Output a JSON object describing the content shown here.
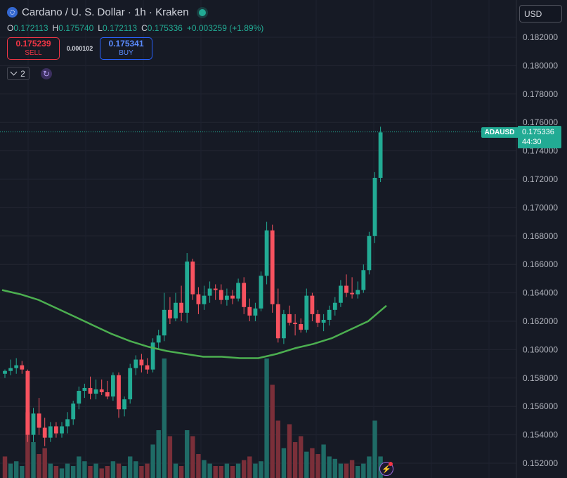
{
  "header": {
    "symbol_title": "Cardano / U. S. Dollar · 1h · Kraken",
    "icon": "cardano-coin-icon",
    "live_indicator": "live-dot-icon"
  },
  "ohlc": {
    "o_label": "O",
    "o_value": "0.172113",
    "h_label": "H",
    "h_value": "0.175740",
    "l_label": "L",
    "l_value": "0.172113",
    "c_label": "C",
    "c_value": "0.175336",
    "change": "+0.003259 (+1.89%)"
  },
  "trade": {
    "sell_price": "0.175239",
    "sell_label": "SELL",
    "spread": "0.000102",
    "buy_price": "0.175341",
    "buy_label": "BUY"
  },
  "indicators": {
    "collapsed_count": "2"
  },
  "currency_select": "USD",
  "price_tag": {
    "symbol": "ADAUSD",
    "price": "0.175336",
    "countdown": "44:30"
  },
  "colors": {
    "background": "#161a25",
    "up": "#22ab94",
    "down": "#f7525f",
    "vol_up": "#1f6b66",
    "vol_down": "#7a2f39",
    "ma": "#4caf50"
  },
  "chart_data": {
    "type": "candlestick",
    "interval": "1h",
    "y_ticks": [
      "0.182000",
      "0.180000",
      "0.178000",
      "0.176000",
      "0.174000",
      "0.172000",
      "0.170000",
      "0.168000",
      "0.166000",
      "0.164000",
      "0.162000",
      "0.160000",
      "0.158000",
      "0.156000",
      "0.154000",
      "0.152000"
    ],
    "ylim": [
      0.1512,
      0.1836
    ],
    "last_price": 0.175336,
    "candles": [
      [
        0.1583,
        0.1586,
        0.158,
        0.1585
      ],
      [
        0.1585,
        0.1593,
        0.1582,
        0.1587
      ],
      [
        0.1587,
        0.1594,
        0.1583,
        0.1589
      ],
      [
        0.1589,
        0.1592,
        0.1583,
        0.1586
      ],
      [
        0.1585,
        0.1586,
        0.1535,
        0.154
      ],
      [
        0.154,
        0.1559,
        0.1535,
        0.1555
      ],
      [
        0.1555,
        0.1566,
        0.154,
        0.1545
      ],
      [
        0.1545,
        0.1552,
        0.1532,
        0.1538
      ],
      [
        0.1538,
        0.1549,
        0.1535,
        0.1546
      ],
      [
        0.1546,
        0.1549,
        0.1538,
        0.1541
      ],
      [
        0.1541,
        0.1549,
        0.1538,
        0.1546
      ],
      [
        0.1546,
        0.1556,
        0.1541,
        0.1551
      ],
      [
        0.1551,
        0.1564,
        0.1547,
        0.1562
      ],
      [
        0.1562,
        0.1574,
        0.1558,
        0.1571
      ],
      [
        0.1571,
        0.1576,
        0.1566,
        0.1573
      ],
      [
        0.1573,
        0.1581,
        0.1565,
        0.1569
      ],
      [
        0.1569,
        0.1579,
        0.1565,
        0.1572
      ],
      [
        0.1572,
        0.1579,
        0.1568,
        0.157
      ],
      [
        0.157,
        0.1578,
        0.1565,
        0.1567
      ],
      [
        0.1567,
        0.1584,
        0.1564,
        0.1582
      ],
      [
        0.1582,
        0.1584,
        0.1552,
        0.1558
      ],
      [
        0.1558,
        0.1567,
        0.1553,
        0.1565
      ],
      [
        0.1565,
        0.159,
        0.1562,
        0.1587
      ],
      [
        0.1587,
        0.1596,
        0.1582,
        0.1593
      ],
      [
        0.1593,
        0.1597,
        0.1584,
        0.1589
      ],
      [
        0.1589,
        0.1594,
        0.1583,
        0.1586
      ],
      [
        0.1586,
        0.1608,
        0.1584,
        0.1605
      ],
      [
        0.1605,
        0.1614,
        0.16,
        0.161
      ],
      [
        0.161,
        0.164,
        0.1606,
        0.1628
      ],
      [
        0.1628,
        0.1637,
        0.1618,
        0.1622
      ],
      [
        0.1622,
        0.164,
        0.162,
        0.1633
      ],
      [
        0.1633,
        0.1645,
        0.162,
        0.1626
      ],
      [
        0.1626,
        0.1668,
        0.1619,
        0.1662
      ],
      [
        0.1662,
        0.1664,
        0.1635,
        0.1639
      ],
      [
        0.1639,
        0.1644,
        0.1625,
        0.1632
      ],
      [
        0.1632,
        0.1645,
        0.1628,
        0.1638
      ],
      [
        0.1638,
        0.1648,
        0.1633,
        0.1643
      ],
      [
        0.1643,
        0.1646,
        0.1635,
        0.1642
      ],
      [
        0.1642,
        0.1646,
        0.1632,
        0.1635
      ],
      [
        0.1635,
        0.1643,
        0.1631,
        0.1638
      ],
      [
        0.1638,
        0.1642,
        0.1632,
        0.1636
      ],
      [
        0.1636,
        0.165,
        0.1634,
        0.1647
      ],
      [
        0.1647,
        0.1651,
        0.1625,
        0.163
      ],
      [
        0.163,
        0.1636,
        0.162,
        0.1624
      ],
      [
        0.1624,
        0.1633,
        0.162,
        0.1629
      ],
      [
        0.1629,
        0.1655,
        0.1627,
        0.1652
      ],
      [
        0.1652,
        0.169,
        0.1646,
        0.1684
      ],
      [
        0.1684,
        0.1688,
        0.1626,
        0.1632
      ],
      [
        0.1632,
        0.1643,
        0.1605,
        0.1608
      ],
      [
        0.1608,
        0.1628,
        0.1604,
        0.1625
      ],
      [
        0.1625,
        0.1631,
        0.1617,
        0.1619
      ],
      [
        0.1619,
        0.1625,
        0.161,
        0.1618
      ],
      [
        0.1618,
        0.1622,
        0.1612,
        0.1614
      ],
      [
        0.1614,
        0.1643,
        0.1612,
        0.1638
      ],
      [
        0.1638,
        0.164,
        0.162,
        0.1625
      ],
      [
        0.1625,
        0.1628,
        0.1616,
        0.1619
      ],
      [
        0.1619,
        0.1625,
        0.1613,
        0.1621
      ],
      [
        0.1621,
        0.1631,
        0.1617,
        0.1628
      ],
      [
        0.1628,
        0.1637,
        0.1624,
        0.1633
      ],
      [
        0.1633,
        0.1649,
        0.163,
        0.1645
      ],
      [
        0.1645,
        0.1653,
        0.1637,
        0.164
      ],
      [
        0.164,
        0.1651,
        0.1636,
        0.1639
      ],
      [
        0.1639,
        0.1648,
        0.1636,
        0.1642
      ],
      [
        0.1642,
        0.166,
        0.164,
        0.1656
      ],
      [
        0.1656,
        0.1683,
        0.1653,
        0.168
      ],
      [
        0.168,
        0.1725,
        0.1675,
        0.1721
      ],
      [
        0.1721,
        0.1757,
        0.1718,
        0.1753
      ]
    ],
    "volume_down": [
      true,
      false,
      false,
      false,
      true,
      false,
      true,
      true,
      false,
      true,
      false,
      false,
      false,
      false,
      false,
      true,
      false,
      true,
      true,
      false,
      true,
      false,
      false,
      false,
      true,
      true,
      false,
      false,
      false,
      true,
      false,
      true,
      false,
      true,
      true,
      false,
      false,
      true,
      true,
      false,
      true,
      false,
      true,
      true,
      false,
      false,
      false,
      true,
      true,
      false,
      true,
      true,
      true,
      false,
      true,
      true,
      false,
      false,
      false,
      false,
      true,
      true,
      false,
      false,
      false,
      false,
      false
    ],
    "volume_relative": [
      0.18,
      0.12,
      0.14,
      0.1,
      0.55,
      0.3,
      0.2,
      0.25,
      0.12,
      0.1,
      0.08,
      0.12,
      0.1,
      0.18,
      0.14,
      0.1,
      0.12,
      0.08,
      0.1,
      0.14,
      0.12,
      0.1,
      0.18,
      0.14,
      0.1,
      0.12,
      0.28,
      0.4,
      1.0,
      0.35,
      0.12,
      0.1,
      0.4,
      0.35,
      0.2,
      0.15,
      0.12,
      0.1,
      0.1,
      0.12,
      0.1,
      0.12,
      0.15,
      0.18,
      0.12,
      0.14,
      1.0,
      0.78,
      0.48,
      0.25,
      0.45,
      0.3,
      0.35,
      0.22,
      0.25,
      0.2,
      0.28,
      0.18,
      0.16,
      0.12,
      0.12,
      0.15,
      0.1,
      0.12,
      0.18,
      0.48,
      0.18
    ],
    "moving_average": [
      0.1642,
      0.1639,
      0.1635,
      0.1629,
      0.1623,
      0.1617,
      0.1611,
      0.1606,
      0.1602,
      0.1599,
      0.1597,
      0.1595,
      0.1595,
      0.1594,
      0.1594,
      0.1597,
      0.1601,
      0.1604,
      0.1608,
      0.1614,
      0.162,
      0.1631
    ]
  }
}
